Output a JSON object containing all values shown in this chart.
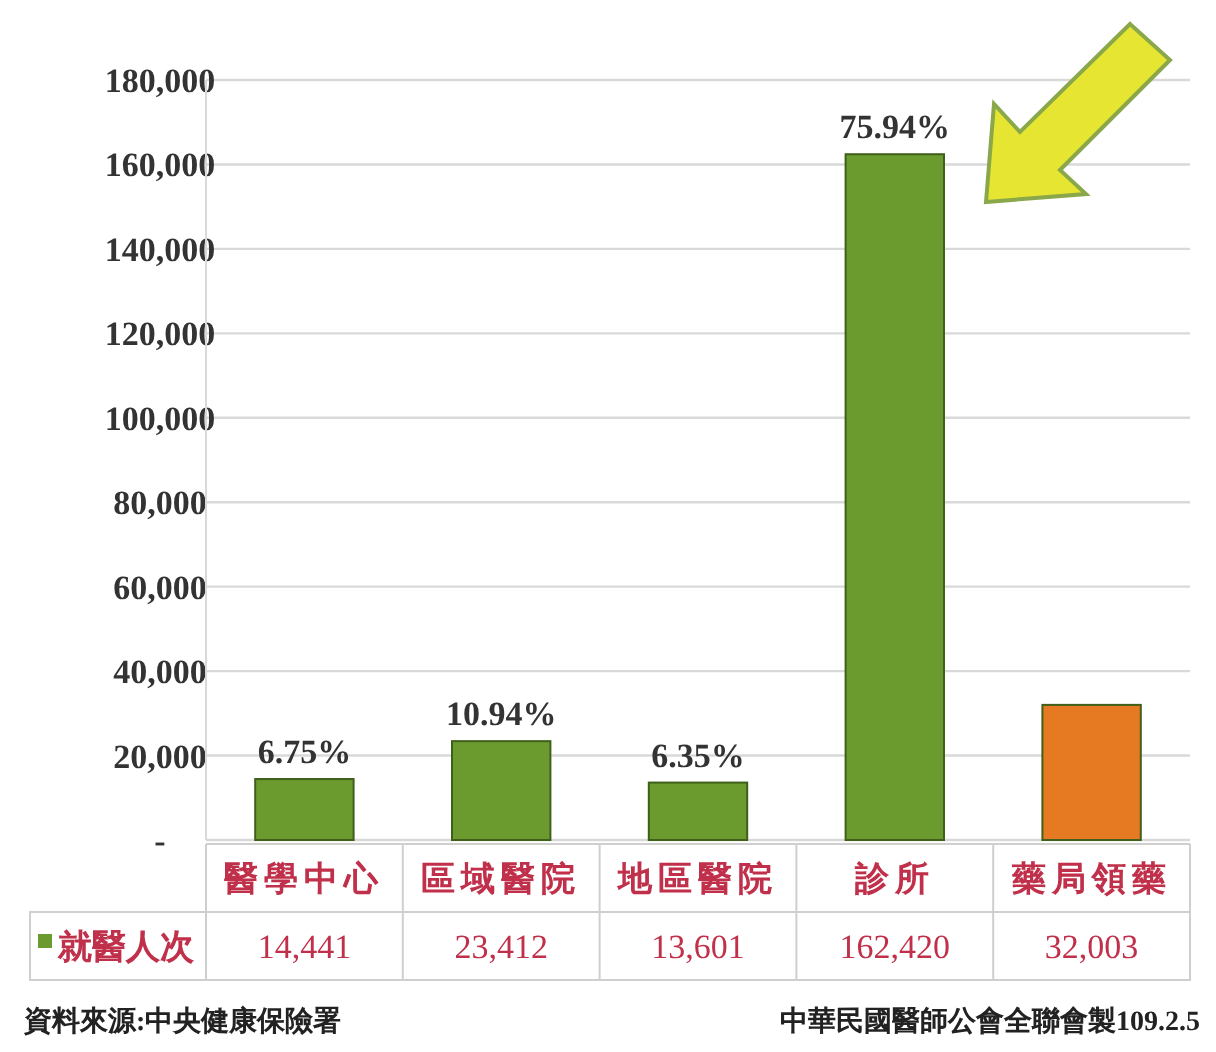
{
  "chart_data": {
    "type": "bar",
    "categories": [
      "醫學中心",
      "區域醫院",
      "地區醫院",
      "診所",
      "藥局領藥"
    ],
    "series": [
      {
        "name": "就醫人次",
        "values": [
          14441,
          23412,
          13601,
          162420,
          32003
        ],
        "value_labels": [
          "14,441",
          "23,412",
          "13,601",
          "162,420",
          "32,003"
        ],
        "colors": [
          "#6b9b2f",
          "#6b9b2f",
          "#6b9b2f",
          "#6b9b2f",
          "#e67a22"
        ]
      }
    ],
    "ylim": [
      0,
      180000
    ],
    "yticks": [
      {
        "value": 0,
        "label": "-"
      },
      {
        "value": 20000,
        "label": "20,000"
      },
      {
        "value": 40000,
        "label": "40,000"
      },
      {
        "value": 60000,
        "label": "60,000"
      },
      {
        "value": 80000,
        "label": "80,000"
      },
      {
        "value": 100000,
        "label": "100,000"
      },
      {
        "value": 120000,
        "label": "120,000"
      },
      {
        "value": 140000,
        "label": "140,000"
      },
      {
        "value": 160000,
        "label": "160,000"
      },
      {
        "value": 180000,
        "label": "180,000"
      }
    ],
    "grid": "y",
    "annotations": [
      {
        "text": "6.75%",
        "x": "醫學中心",
        "y": 14441
      },
      {
        "text": "10.94%",
        "x": "區域醫院",
        "y": 23412
      },
      {
        "text": "6.35%",
        "x": "地區醫院",
        "y": 13601
      },
      {
        "text": "75.94%",
        "x": "診所",
        "y": 162420
      },
      "資料來源:中央健康保險署",
      "中華民國醫師公會全聯會製109.2.5"
    ]
  }
}
